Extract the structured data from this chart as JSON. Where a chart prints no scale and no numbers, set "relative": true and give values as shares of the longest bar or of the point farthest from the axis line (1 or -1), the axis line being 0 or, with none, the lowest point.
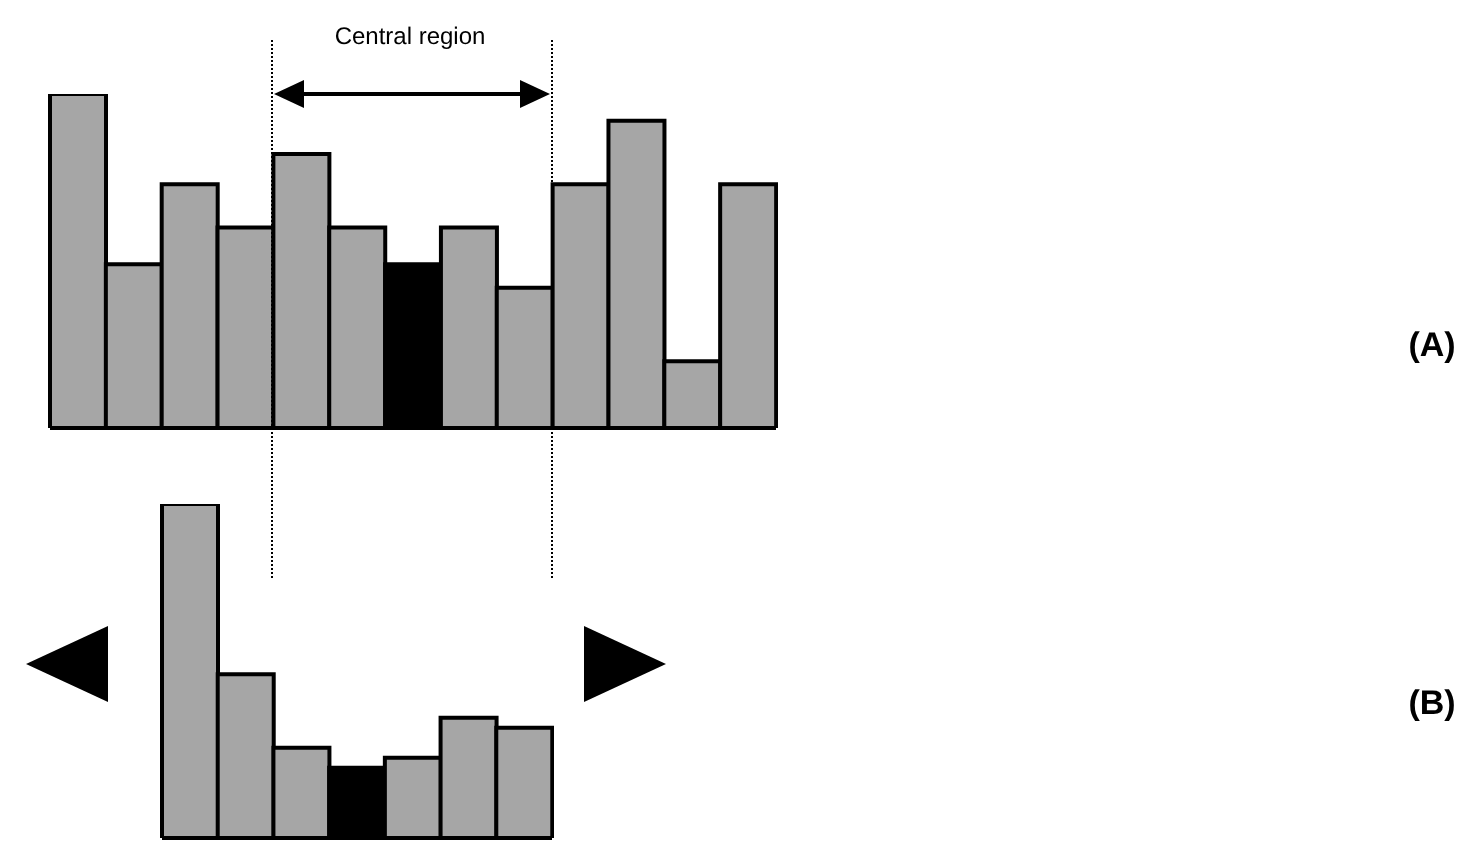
{
  "chart_data": [
    {
      "type": "bar",
      "relative": true,
      "categories": [
        null,
        null,
        null,
        null,
        null,
        null,
        null,
        null,
        null,
        null,
        null,
        null,
        null
      ],
      "values": [
        1,
        0.49,
        0.73,
        0.6,
        0.82,
        0.6,
        0.49,
        0.6,
        0.42,
        0.73,
        0.92,
        0.2,
        0.73
      ],
      "colors": [
        "#a6a6a6",
        "#a6a6a6",
        "#a6a6a6",
        "#a6a6a6",
        "#a6a6a6",
        "#a6a6a6",
        "#000000",
        "#a6a6a6",
        "#a6a6a6",
        "#a6a6a6",
        "#a6a6a6",
        "#a6a6a6",
        "#a6a6a6"
      ],
      "annotations": [
        "Central region",
        "(A)"
      ]
    },
    {
      "type": "bar",
      "relative": true,
      "categories": [
        null,
        null,
        null,
        null,
        null,
        null,
        null
      ],
      "values": [
        1,
        0.49,
        0.27,
        0.21,
        0.24,
        0.36,
        0.33
      ],
      "colors": [
        "#a6a6a6",
        "#a6a6a6",
        "#a6a6a6",
        "#000000",
        "#a6a6a6",
        "#a6a6a6",
        "#a6a6a6"
      ],
      "annotations": [
        "(B)"
      ]
    }
  ]
}
